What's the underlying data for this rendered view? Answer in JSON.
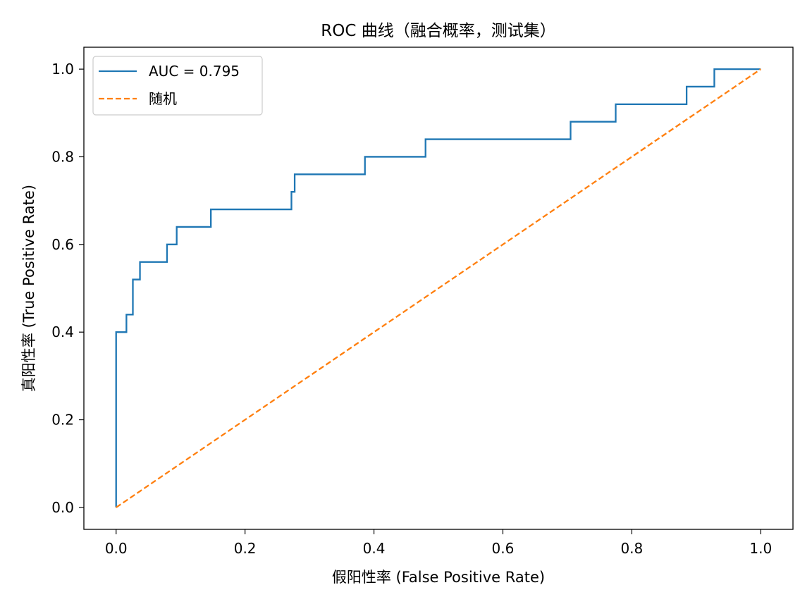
{
  "chart_data": {
    "type": "line",
    "title": "ROC 曲线（融合概率，测试集）",
    "xlabel": "假阳性率 (False Positive Rate)",
    "ylabel": "真阳性率 (True Positive Rate)",
    "xlim": [
      -0.05,
      1.05
    ],
    "ylim": [
      -0.05,
      1.05
    ],
    "xticks": [
      "0.0",
      "0.2",
      "0.4",
      "0.6",
      "0.8",
      "1.0"
    ],
    "yticks": [
      "0.0",
      "0.2",
      "0.4",
      "0.6",
      "0.8",
      "1.0"
    ],
    "xtick_values": [
      0.0,
      0.2,
      0.4,
      0.6,
      0.8,
      1.0
    ],
    "ytick_values": [
      0.0,
      0.2,
      0.4,
      0.6,
      0.8,
      1.0
    ],
    "grid": false,
    "legend_position": "top-left",
    "series": [
      {
        "name": "AUC = 0.795",
        "color": "#1f77b4",
        "style": "solid",
        "x": [
          0.0,
          0.0,
          0.0,
          0.016,
          0.016,
          0.026,
          0.026,
          0.037,
          0.037,
          0.079,
          0.079,
          0.094,
          0.094,
          0.147,
          0.147,
          0.272,
          0.272,
          0.277,
          0.277,
          0.386,
          0.386,
          0.48,
          0.48,
          0.705,
          0.705,
          0.775,
          0.775,
          0.885,
          0.885,
          0.928,
          0.928,
          1.0
        ],
        "y": [
          0.0,
          0.0,
          0.4,
          0.4,
          0.44,
          0.44,
          0.52,
          0.52,
          0.56,
          0.56,
          0.6,
          0.6,
          0.64,
          0.64,
          0.68,
          0.68,
          0.72,
          0.72,
          0.76,
          0.76,
          0.8,
          0.8,
          0.84,
          0.84,
          0.88,
          0.88,
          0.92,
          0.92,
          0.96,
          0.96,
          1.0,
          1.0
        ]
      },
      {
        "name": "随机",
        "color": "#ff7f0e",
        "style": "dashed",
        "x": [
          0.0,
          1.0
        ],
        "y": [
          0.0,
          1.0
        ]
      }
    ]
  }
}
